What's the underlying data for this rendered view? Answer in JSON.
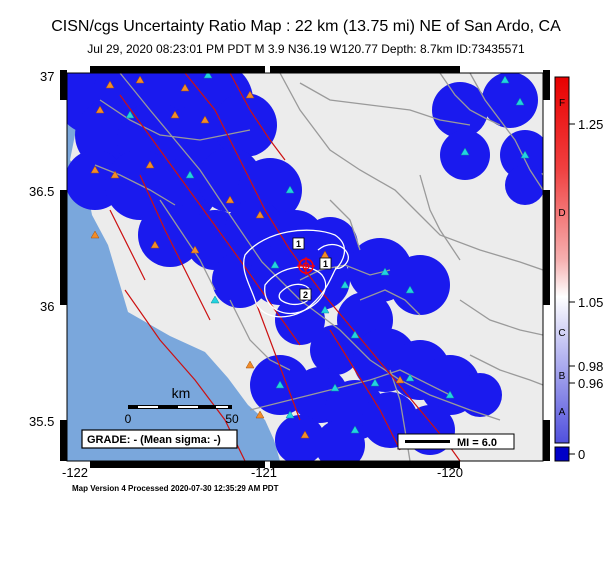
{
  "header": {
    "title": "CISN/cgs Uncertainty Ratio Map : 22 km (13.75 mi) NE of San Ardo, CA",
    "subtitle": "Jul 29, 2020 08:23:01 PM PDT   M 3.9   N36.19 W120.77   Depth: 8.7km   ID:73435571"
  },
  "axes": {
    "lat_ticks": [
      "37",
      "36.5",
      "36",
      "35.5"
    ],
    "lon_ticks": [
      "-122",
      "-121",
      "-120"
    ]
  },
  "scale_bar": {
    "unit": "km",
    "left": "0",
    "right": "50"
  },
  "grade_box": "GRADE: - (Mean sigma: -)",
  "mi_legend": "MI = 6.0",
  "contour_labels": [
    "1",
    "2",
    "1"
  ],
  "colorbar": {
    "letters": [
      "F",
      "D",
      "C",
      "B",
      "A"
    ],
    "values": [
      "1.25",
      "1.05",
      "0.98",
      "0.96",
      "0"
    ]
  },
  "footer": "Map Version 4 Processed 2020-07-30 12:35:29 AM PDT",
  "colors": {
    "ocean": "#7aa7dc",
    "land": "#ececec",
    "coverage": "#1a1aee",
    "fault": "#cc1111",
    "road": "#9a9a9a",
    "epicenter": "#ff0000",
    "station_orange": "#f28c28",
    "station_cyan": "#22d3e0"
  }
}
